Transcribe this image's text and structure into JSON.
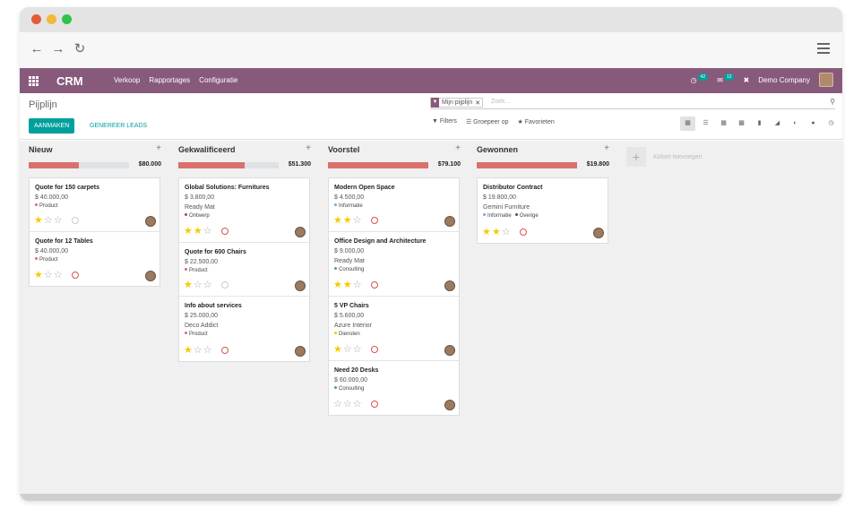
{
  "navbar": {
    "brand": "CRM",
    "menu": [
      "Verkoop",
      "Rapportages",
      "Configuratie"
    ],
    "activities_count": "42",
    "messages_count": "12",
    "company": "Demo Company"
  },
  "control": {
    "breadcrumb": "Pijplijn",
    "create_label": "AANMAKEN",
    "generate_label": "GENEREER LEADS",
    "facet_label": "Mijn pijplijn",
    "search_placeholder": "Zoek...",
    "filters_label": "Filters",
    "groupby_label": "Groepeer op",
    "favorites_label": "Favorieten"
  },
  "add_column_label": "Kolom toevoegen",
  "columns": [
    {
      "title": "Nieuw",
      "total": "$80.000",
      "progress": 0.5,
      "cards": [
        {
          "title": "Quote for 150 carpets",
          "amount": "$ 40.000,00",
          "company": "",
          "tags": [
            {
              "label": "Product",
              "color": "#e06b6b"
            }
          ],
          "stars": 1,
          "activity": "none"
        },
        {
          "title": "Quote for 12 Tables",
          "amount": "$ 40.000,00",
          "company": "",
          "tags": [
            {
              "label": "Product",
              "color": "#e06b6b"
            }
          ],
          "stars": 1,
          "activity": "late"
        }
      ]
    },
    {
      "title": "Gekwalificeerd",
      "total": "$51.300",
      "progress": 0.66,
      "cards": [
        {
          "title": "Global Solutions: Furnitures",
          "amount": "$ 3.800,00",
          "company": "Ready Mat",
          "tags": [
            {
              "label": "Ontwerp",
              "color": "#a94472"
            }
          ],
          "stars": 2,
          "activity": "late"
        },
        {
          "title": "Quote for 600 Chairs",
          "amount": "$ 22.500,00",
          "company": "",
          "tags": [
            {
              "label": "Product",
              "color": "#e06b6b"
            }
          ],
          "stars": 1,
          "activity": "none"
        },
        {
          "title": "Info about services",
          "amount": "$ 25.000,00",
          "company": "Deco Addict",
          "tags": [
            {
              "label": "Product",
              "color": "#e06b6b"
            }
          ],
          "stars": 1,
          "activity": "late"
        }
      ]
    },
    {
      "title": "Voorstel",
      "total": "$79.100",
      "progress": 1,
      "cards": [
        {
          "title": "Modern Open Space",
          "amount": "$ 4.500,00",
          "company": "",
          "tags": [
            {
              "label": "Informatie",
              "color": "#6fa8dc"
            }
          ],
          "stars": 2,
          "activity": "late"
        },
        {
          "title": "Office Design and Architecture",
          "amount": "$ 9.000,00",
          "company": "Ready Mat",
          "tags": [
            {
              "label": "Consulting",
              "color": "#4a9b9b"
            }
          ],
          "stars": 2,
          "activity": "late"
        },
        {
          "title": "5 VP Chairs",
          "amount": "$ 5.600,00",
          "company": "Azure Interior",
          "tags": [
            {
              "label": "Diensten",
              "color": "#f3cc00"
            }
          ],
          "stars": 1,
          "activity": "late"
        },
        {
          "title": "Need 20 Desks",
          "amount": "$ 60.000,00",
          "company": "",
          "tags": [
            {
              "label": "Consulting",
              "color": "#4a9b9b"
            }
          ],
          "stars": 0,
          "activity": "late"
        }
      ]
    },
    {
      "title": "Gewonnen",
      "total": "$19.800",
      "progress": 1,
      "cards": [
        {
          "title": "Distributor Contract",
          "amount": "$ 19.800,00",
          "company": "Gemini Furniture",
          "tags": [
            {
              "label": "Informatie",
              "color": "#6fa8dc"
            },
            {
              "label": "Overige",
              "color": "#555555"
            }
          ],
          "stars": 2,
          "activity": "late"
        }
      ]
    }
  ]
}
